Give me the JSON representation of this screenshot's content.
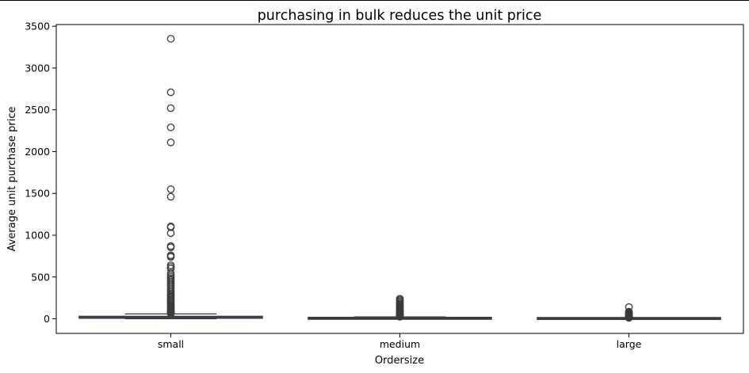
{
  "chart_data": {
    "type": "box",
    "title": "purchasing in bulk reduces the unit price",
    "xlabel": "Ordersize",
    "ylabel": "Average unit purchase price",
    "categories": [
      "small",
      "medium",
      "large"
    ],
    "ylim": [
      -175,
      3520
    ],
    "yticks": [
      0,
      500,
      1000,
      1500,
      2000,
      2500,
      3000,
      3500
    ],
    "ytick_labels": [
      "0",
      "500",
      "1000",
      "1500",
      "2000",
      "2500",
      "3000",
      "3500"
    ],
    "box_color": "#3f5fa0",
    "line_color": "#3a3a3a",
    "grid": false,
    "boxes": [
      {
        "category": "small",
        "whisker_low": 0,
        "q1": 6,
        "median": 15,
        "q3": 30,
        "whisker_high": 58,
        "outliers": [
          3350,
          2710,
          2520,
          2290,
          2110,
          1550,
          1460,
          1105,
          1095,
          1025,
          870,
          855,
          760,
          745,
          740,
          640,
          620,
          600,
          545,
          520,
          500,
          480,
          460,
          440,
          420,
          400,
          380,
          360,
          340,
          320,
          300,
          285,
          270,
          255,
          240,
          225,
          210,
          195,
          180,
          165,
          150,
          138,
          126,
          115,
          104,
          95,
          86,
          78,
          70,
          63
        ]
      },
      {
        "category": "medium",
        "whisker_low": 0,
        "q1": 2,
        "median": 5,
        "q3": 10,
        "whisker_high": 22,
        "outliers": [
          240,
          225,
          210,
          195,
          182,
          170,
          158,
          146,
          135,
          124,
          114,
          104,
          95,
          86,
          78,
          70,
          62,
          55,
          48,
          41,
          35,
          29,
          24
        ]
      },
      {
        "category": "large",
        "whisker_low": 0,
        "q1": 1,
        "median": 3,
        "q3": 6,
        "whisker_high": 11,
        "outliers": [
          140,
          85,
          75,
          65,
          57,
          49,
          42,
          35,
          29,
          23,
          18,
          14,
          12
        ]
      }
    ]
  }
}
